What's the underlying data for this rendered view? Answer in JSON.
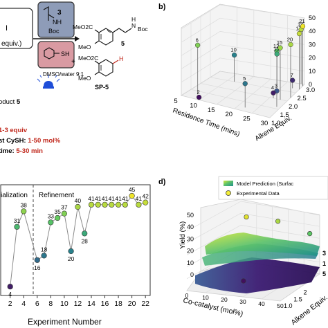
{
  "colors": {
    "reaction_red": "#c0271b",
    "reagent_blue_box": "#8e9cb8",
    "reagent_pink_box": "#d99aa2",
    "light_blue": "#1f4ed8",
    "grid": "#d7d7d7",
    "line": "#8a8a8a",
    "surface_top": "#c5e542",
    "surface_mid": "#2aa68e",
    "surface_bottom": "#3b0f6e",
    "marker_yellow": "#f3ee3a"
  },
  "scheme": {
    "box1_text_top": "I",
    "box1_text_bottom": "equiv.)",
    "box2_number": "3",
    "box2_group": "NH",
    "box2_protect": "Boc",
    "box3_group": "SH",
    "solvent": "DMSO/water 9:1",
    "light_icon": "lamp-icon",
    "product_ester": "MeO2C",
    "product_methoxy": "MeO",
    "product_nh": "N",
    "product_h": "H",
    "product_boc": "Boc",
    "product_number": "5",
    "plus": "+",
    "side_ester": "MeO2C",
    "side_methoxy": "MeO",
    "side_h": "H",
    "side_label": "SP-5",
    "left_label": "oduct",
    "left_label_number": "5",
    "cond1": "1-3 equiv",
    "cond2_prefix": "st CySH: ",
    "cond2_value": "1-50 mol%",
    "cond3_prefix": " time: ",
    "cond3_value": "5-30 min"
  },
  "panel_b": {
    "label": "b)",
    "xlabel": "Residence Time (mins)",
    "ylabel": "Alkene Equiv.",
    "xticks": [
      "5",
      "10",
      "15",
      "20",
      "25",
      "30"
    ],
    "yticks": [
      "1.0",
      "1.5",
      "2.0",
      "2.5",
      "3.0"
    ],
    "zticks": [
      "0",
      "10",
      "20",
      "30",
      "40",
      "50"
    ]
  },
  "panel_d": {
    "label": "d)",
    "legend_surface": "Model Prediction (Surfac",
    "legend_points": "Experimental Data",
    "zlabel": "Yield (%)",
    "xlabel": "Co-catalyst (mol%)",
    "ylabel": "Alkene Equiv.",
    "zticks": [
      "0",
      "10",
      "20",
      "30",
      "40",
      "50"
    ],
    "xticks": [
      "0",
      "10",
      "20",
      "30",
      "40",
      "50"
    ],
    "yticks": [
      "1.0",
      "1.5",
      "2"
    ],
    "right_labels": [
      "3",
      "1",
      "5"
    ]
  },
  "chart_data": [
    {
      "type": "scatter",
      "panel": "b",
      "xlabel": "Residence Time (mins)",
      "ylabel": "Alkene Equiv.",
      "points": [
        {
          "label": "2",
          "x": 10,
          "y": 1.0,
          "z": 2
        },
        {
          "label": "6",
          "x": 8,
          "y": 1.3,
          "z": 37
        },
        {
          "label": "5",
          "x": 22,
          "y": 1.2,
          "z": 18
        },
        {
          "label": "3",
          "x": 29,
          "y": 1.6,
          "z": 12
        },
        {
          "label": "10",
          "x": 12,
          "y": 2.5,
          "z": 20
        },
        {
          "label": "4",
          "x": 26,
          "y": 2.0,
          "z": 4
        },
        {
          "label": "12",
          "x": 26,
          "y": 2.2,
          "z": 33
        },
        {
          "label": "13",
          "x": 25,
          "y": 2.4,
          "z": 28
        },
        {
          "label": "15",
          "x": 28,
          "y": 2.0,
          "z": 39
        },
        {
          "label": "17",
          "x": 30,
          "y": 2.7,
          "z": 42
        },
        {
          "label": "19",
          "x": 29,
          "y": 3.0,
          "z": 41
        },
        {
          "label": "20",
          "x": 30,
          "y": 2.2,
          "z": 40
        },
        {
          "label": "21",
          "x": 30,
          "y": 2.9,
          "z": 45
        },
        {
          "label": "7",
          "x": 28,
          "y": 2.7,
          "z": 6
        }
      ]
    },
    {
      "type": "line",
      "panel": "c",
      "xlabel": "Experiment Number",
      "ylabel": "",
      "phase_labels": [
        "ialization",
        "Refinement"
      ],
      "xticks": [
        2,
        4,
        6,
        8,
        10,
        12,
        14,
        16,
        18,
        20,
        22
      ],
      "x": [
        1,
        2,
        3,
        4,
        5,
        6,
        7,
        8,
        9,
        10,
        11,
        12,
        13,
        14,
        15,
        16,
        17,
        18,
        19,
        20,
        21,
        22
      ],
      "values": [
        null,
        4,
        31,
        38,
        null,
        16,
        18,
        33,
        35,
        37,
        20,
        40,
        28,
        41,
        41,
        41,
        41,
        41,
        41,
        45,
        41,
        42
      ],
      "point_labels": [
        "",
        "4",
        "31",
        "38",
        "",
        "16",
        "18",
        "33",
        "35",
        "37",
        "20",
        "40",
        "28",
        "41",
        "41",
        "41",
        "41",
        "41",
        "41",
        "45",
        "41",
        "42"
      ]
    },
    {
      "type": "surface",
      "panel": "d",
      "xlabel": "Co-catalyst (mol%)",
      "ylabel": "Alkene Equiv.",
      "zlabel": "Yield (%)",
      "series": [
        {
          "name": "Model Prediction (Surfac"
        },
        {
          "name": "Experimental Data"
        }
      ]
    }
  ]
}
